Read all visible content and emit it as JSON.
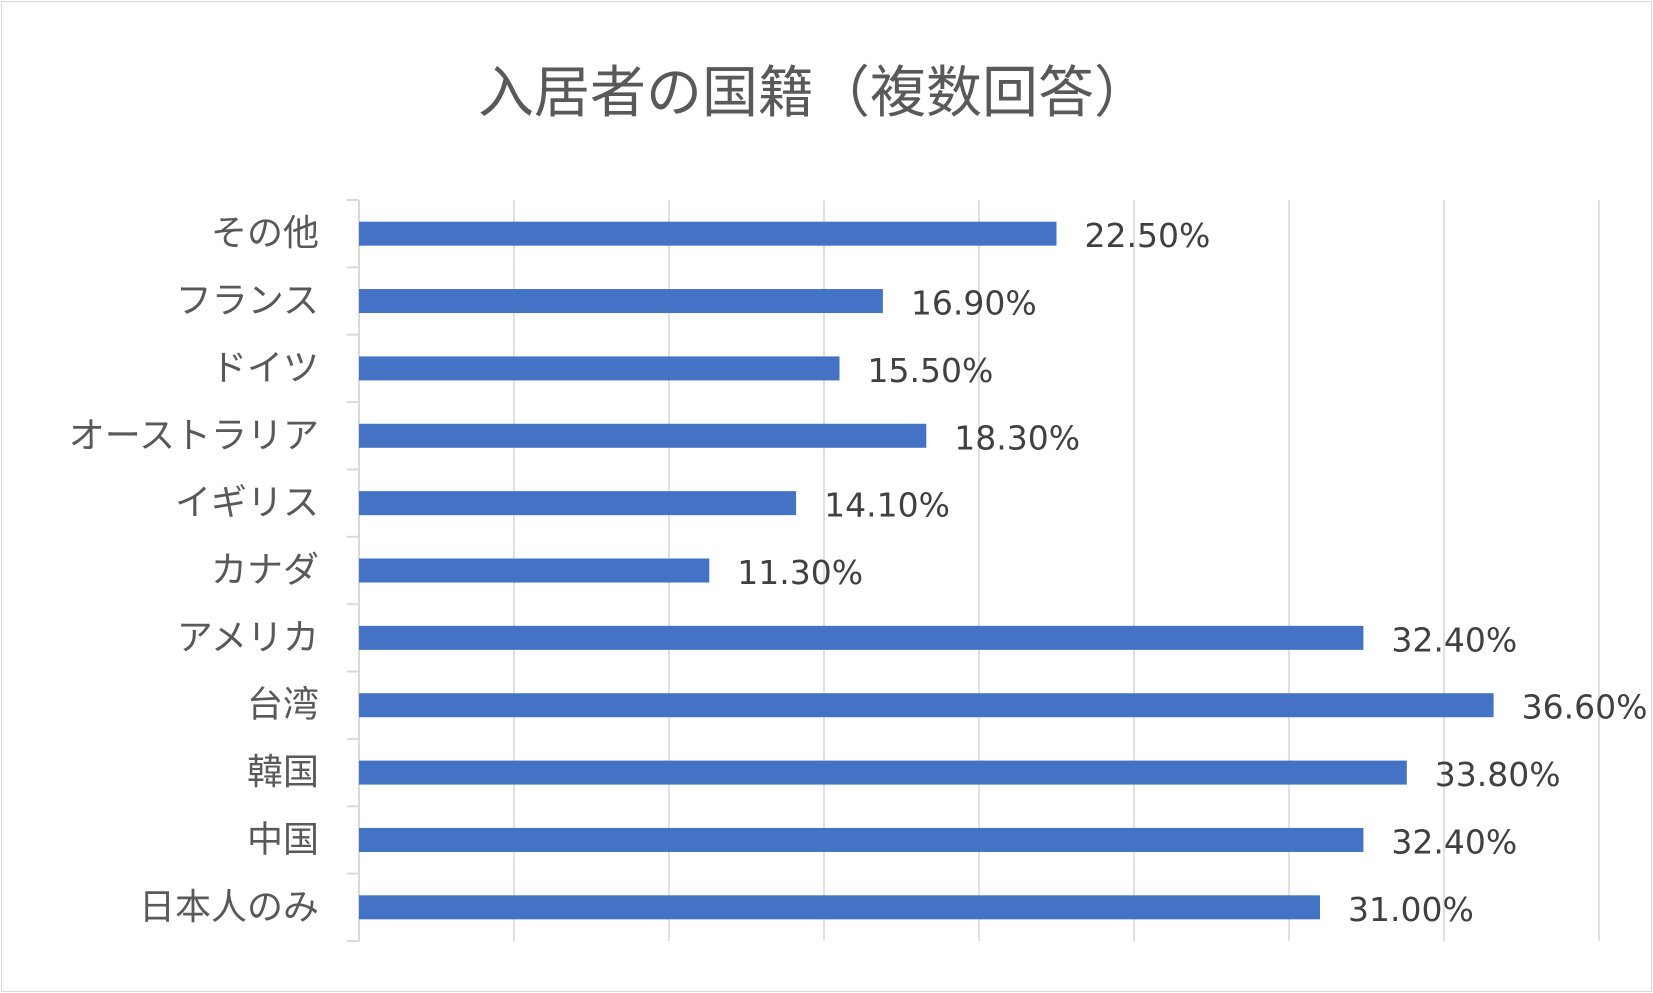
{
  "chart_data": {
    "type": "bar",
    "orientation": "horizontal",
    "title": "入居者の国籍（複数回答）",
    "categories": [
      "その他",
      "フランス",
      "ドイツ",
      "オーストラリア",
      "イギリス",
      "カナダ",
      "アメリカ",
      "台湾",
      "韓国",
      "中国",
      "日本人のみ"
    ],
    "values": [
      22.5,
      16.9,
      15.5,
      18.3,
      14.1,
      11.3,
      32.4,
      36.6,
      33.8,
      32.4,
      31.0
    ],
    "data_labels": [
      "22.50%",
      "16.90%",
      "15.50%",
      "18.30%",
      "14.10%",
      "11.30%",
      "32.40%",
      "36.60%",
      "33.80%",
      "32.40%",
      "31.00%"
    ],
    "xlim": [
      0,
      40
    ],
    "grid": true,
    "legend": "none",
    "bar_color": "#4472c4"
  }
}
